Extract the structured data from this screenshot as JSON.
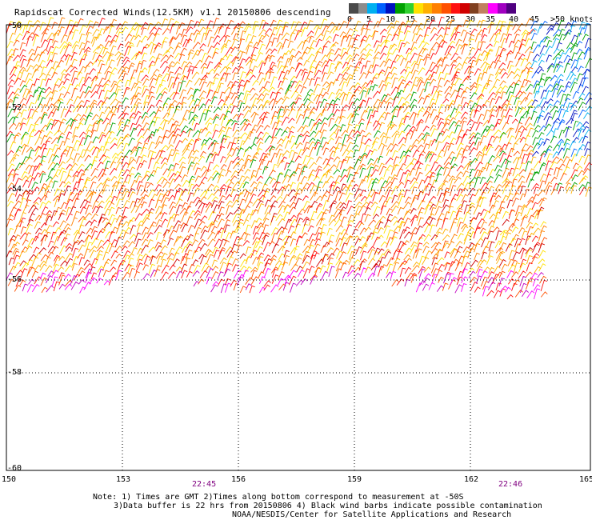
{
  "title": "Rapidscat Corrected Winds(12.5KM) v1.1 20150806 descending",
  "legend": {
    "unit": "knots",
    "ticks": [
      "0",
      "5",
      "10",
      "15",
      "20",
      "25",
      "30",
      "35",
      "40",
      "45",
      ">50 knots"
    ],
    "colors": [
      "#4a4a4a",
      "#8c8c8c",
      "#00b0f0",
      "#0060ff",
      "#0010c0",
      "#00a000",
      "#30d030",
      "#ffe000",
      "#ffb000",
      "#ff8000",
      "#ff5000",
      "#ff1010",
      "#d00000",
      "#804020",
      "#c08060",
      "#ff00ff",
      "#a000c0",
      "#500080"
    ]
  },
  "map": {
    "lon_labels": [
      "150",
      "153",
      "156",
      "159",
      "162",
      "165"
    ],
    "lat_labels": [
      "-50",
      "-52",
      "-54",
      "-56",
      "-58",
      "-60"
    ],
    "times": [
      "22:45",
      "22:46"
    ]
  },
  "notes": {
    "line1": "Note: 1) Times are GMT 2)Times along bottom correspond to measurement at -50S",
    "line2": "3)Data buffer is 22 hrs from 20150806 4) Black wind barbs indicate possible contamination",
    "line3": "NOAA/NESDIS/Center for Satellite Applications and Research"
  }
}
